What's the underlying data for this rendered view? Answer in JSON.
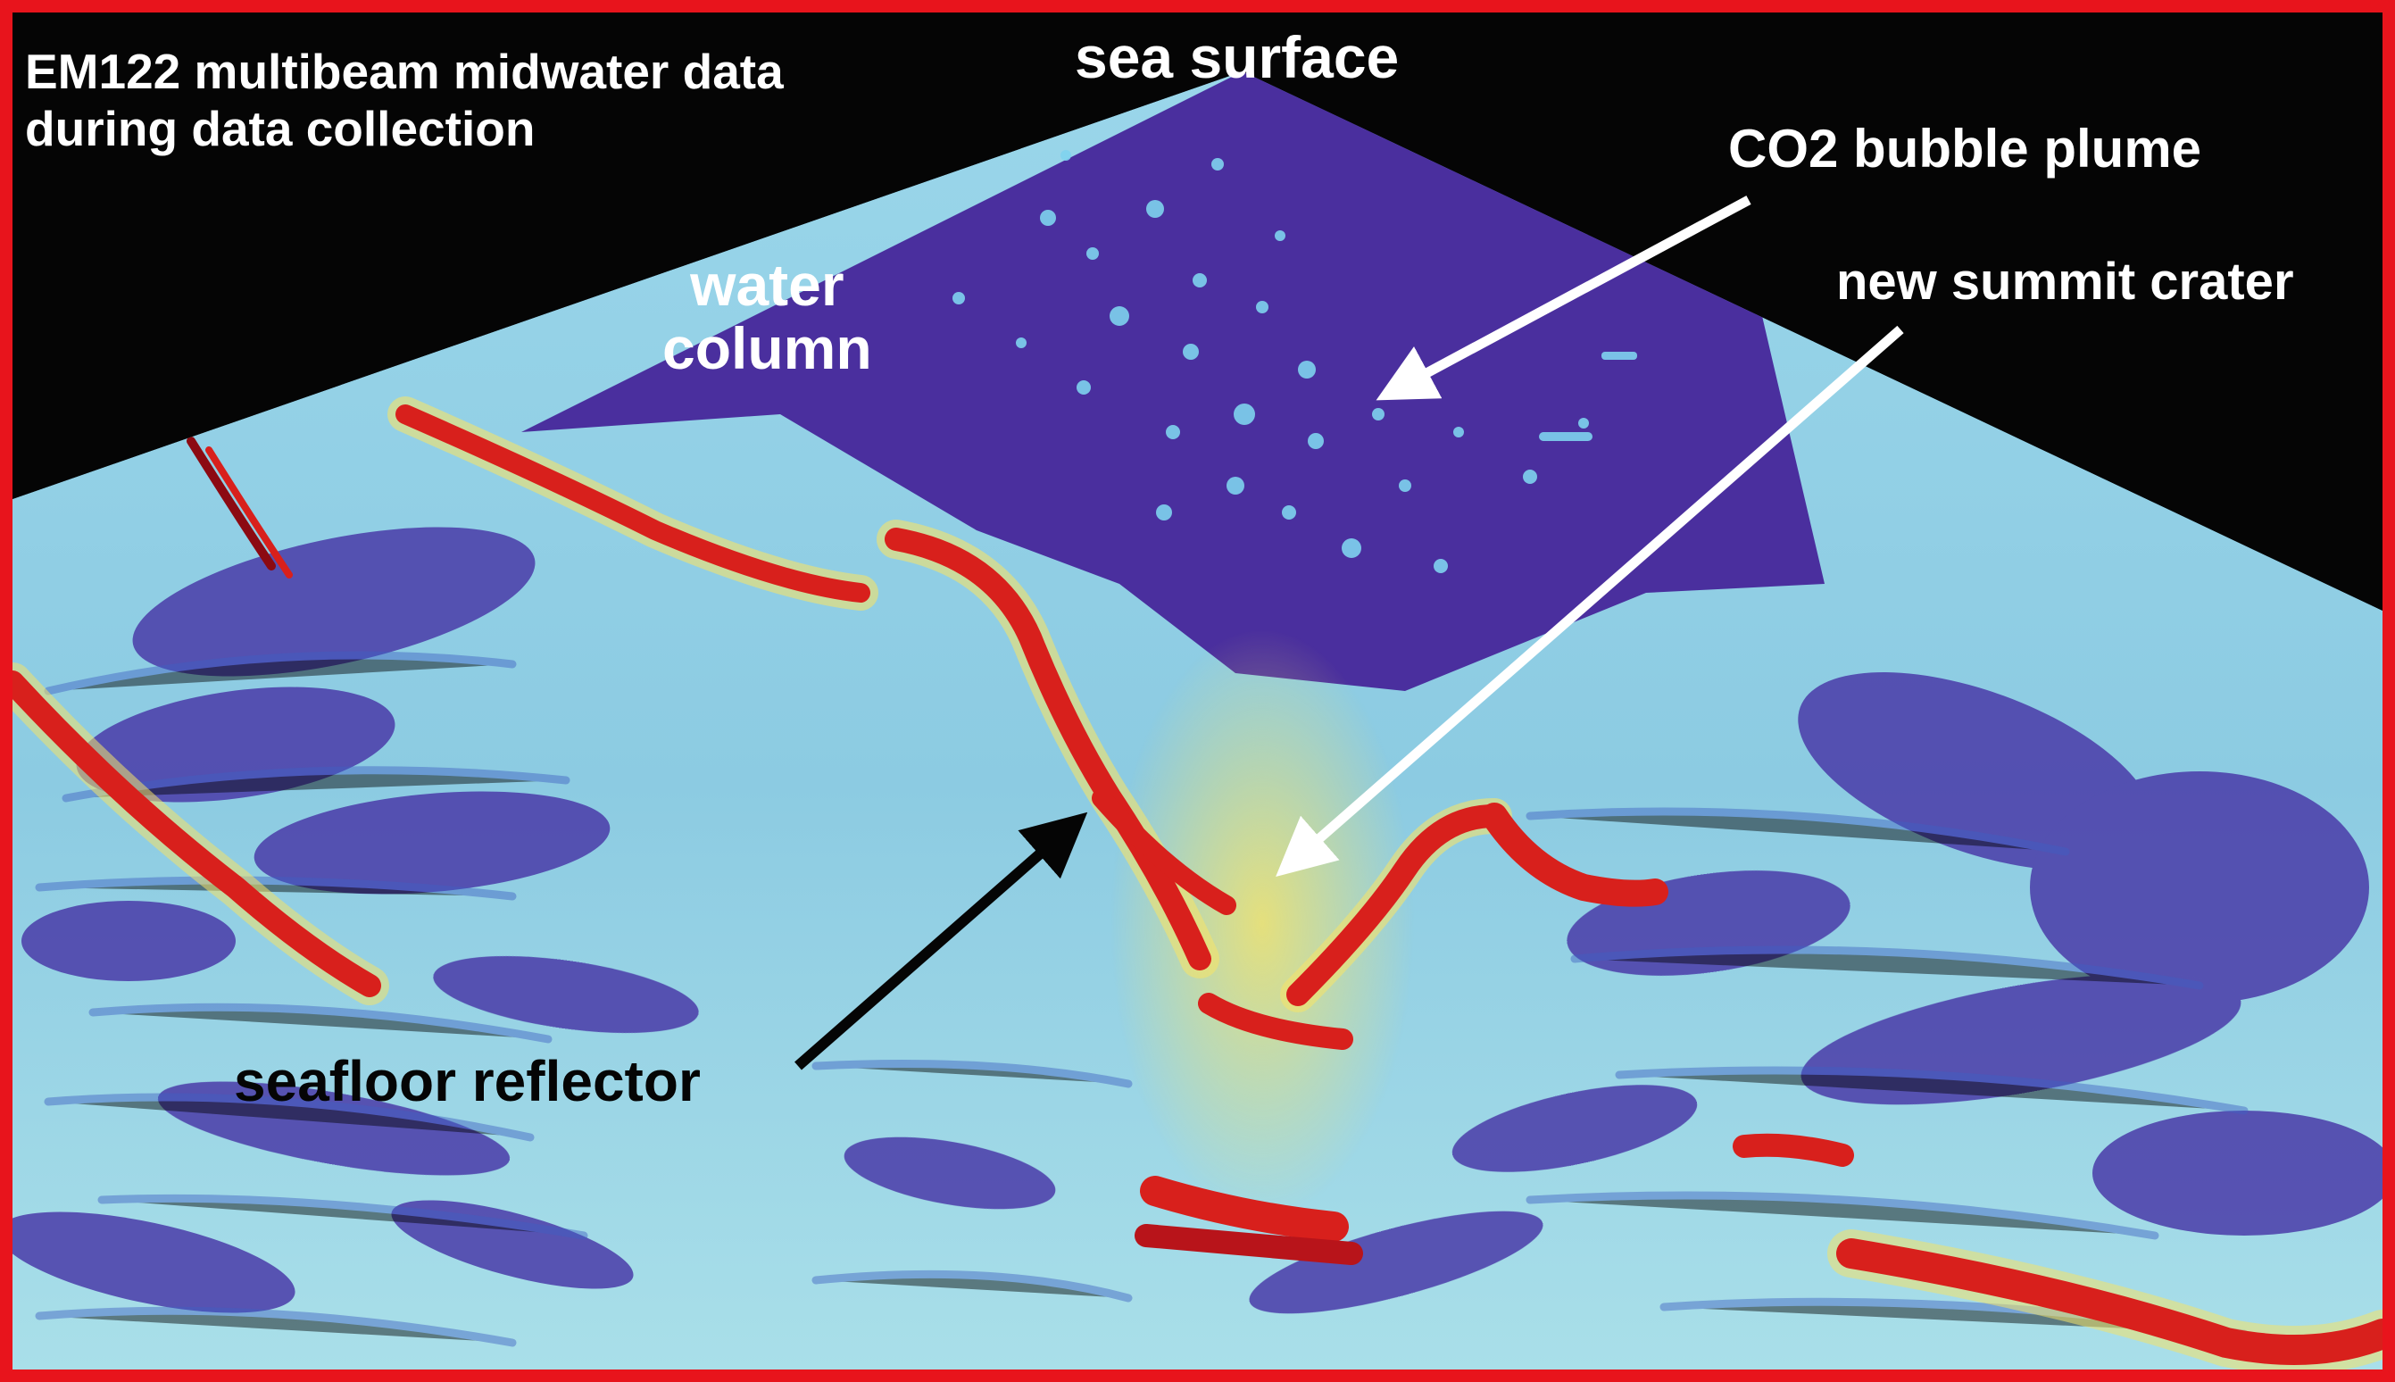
{
  "title_lines": [
    "EM122 multibeam midwater data",
    "during data collection"
  ],
  "labels": {
    "sea_surface": "sea surface",
    "water_column_lines": [
      "water",
      "column"
    ],
    "co2_bubble_plume": "CO2 bubble plume",
    "new_summit_crater": "new summit crater",
    "seafloor_reflector": "seafloor reflector"
  },
  "colors": {
    "frame_border": "#e8141c",
    "background": "#050505",
    "water_column": "#4a2f9e",
    "backscatter_low": "#8fd0e6",
    "backscatter_mid": "#f3e26a",
    "backscatter_high": "#d8201c",
    "backscatter_peak": "#8c0a12",
    "label_light": "#ffffff",
    "label_dark": "#050505"
  }
}
